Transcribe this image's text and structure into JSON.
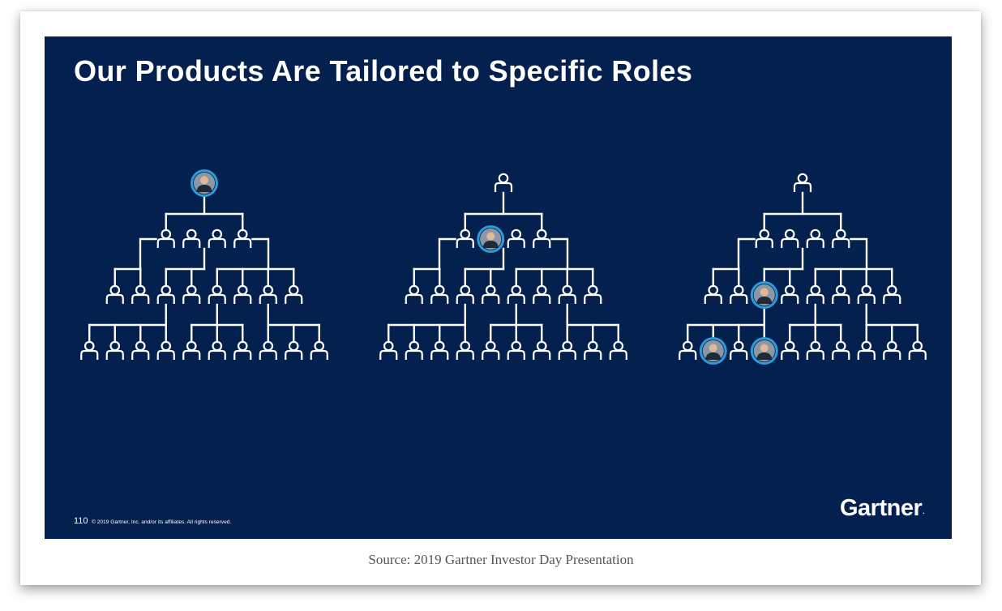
{
  "slide": {
    "title": "Our Products Are Tailored to Specific Roles",
    "page_number": "110",
    "copyright": "© 2019 Gartner, Inc. and/or its affiliates. All rights reserved.",
    "brand": "Gartner",
    "brand_mark": "."
  },
  "caption": "Source: 2019 Gartner Investor Day Presentation",
  "colors": {
    "slide_background": "#03204f",
    "line": "#ffffff",
    "highlight_ring": "#2e9bd6"
  },
  "icons": {
    "person": "person-outline-icon",
    "highlighted_person": "person-photo-icon"
  },
  "org_charts": [
    {
      "tier_counts": [
        1,
        4,
        8,
        10
      ],
      "highlighted": [
        [
          0,
          0
        ]
      ]
    },
    {
      "tier_counts": [
        1,
        4,
        8,
        10
      ],
      "highlighted": [
        [
          1,
          1
        ]
      ]
    },
    {
      "tier_counts": [
        1,
        4,
        8,
        10
      ],
      "highlighted": [
        [
          2,
          2
        ],
        [
          3,
          1
        ],
        [
          3,
          3
        ]
      ]
    }
  ]
}
